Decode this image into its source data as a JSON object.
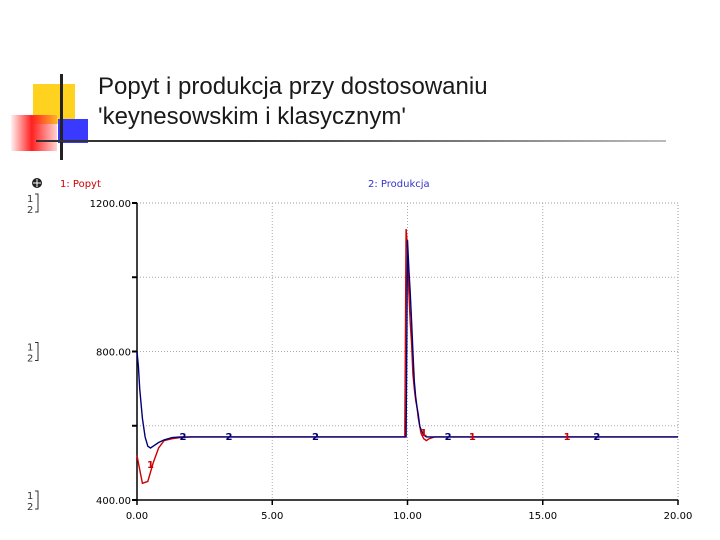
{
  "slide": {
    "title_line1": "Popyt i produkcja przy dostosowaniu",
    "title_line2": "'keynesowskim i klasycznym'"
  },
  "chart_data": {
    "type": "line",
    "title": "",
    "xlabel": "",
    "ylabel": "",
    "xlim": [
      0,
      20
    ],
    "ylim": [
      400,
      1200
    ],
    "x_ticks": [
      "0.00",
      "5.00",
      "10.00",
      "15.00",
      "20.00"
    ],
    "y_ticks": [
      "1200.00",
      "800.00",
      "400.00"
    ],
    "grid": true,
    "legend": "top",
    "series": [
      {
        "name": "1: Popyt",
        "color": "#cc0000",
        "marker_label": "1",
        "x": [
          0.0,
          0.05,
          0.2,
          0.4,
          0.6,
          0.8,
          1.0,
          1.3,
          1.6,
          2.0,
          3.0,
          5.0,
          9.9,
          9.95,
          10.0,
          10.05,
          10.1,
          10.15,
          10.2,
          10.25,
          10.3,
          10.35,
          10.4,
          10.45,
          10.5,
          10.6,
          10.7,
          10.8,
          11.0,
          12.0,
          15.0,
          20.0
        ],
        "y": [
          520,
          500,
          445,
          450,
          500,
          540,
          560,
          565,
          568,
          570,
          570,
          570,
          570,
          1130,
          1080,
          960,
          880,
          820,
          740,
          700,
          670,
          650,
          620,
          600,
          580,
          565,
          560,
          565,
          570,
          570,
          570,
          570
        ]
      },
      {
        "name": "2: Produkcja",
        "color": "#00007a",
        "marker_label": "2",
        "x": [
          0.0,
          0.05,
          0.1,
          0.2,
          0.3,
          0.4,
          0.5,
          0.6,
          0.8,
          1.0,
          1.3,
          1.6,
          2.0,
          3.0,
          5.0,
          9.9,
          9.95,
          10.0,
          10.05,
          10.1,
          10.15,
          10.2,
          10.25,
          10.3,
          10.35,
          10.4,
          10.45,
          10.5,
          10.6,
          10.7,
          11.0,
          12.0,
          15.0,
          20.0
        ],
        "y": [
          800,
          760,
          700,
          620,
          570,
          545,
          540,
          545,
          555,
          562,
          568,
          570,
          570,
          570,
          570,
          570,
          570,
          1100,
          1020,
          960,
          880,
          800,
          720,
          680,
          650,
          630,
          600,
          590,
          575,
          570,
          570,
          570,
          570,
          570
        ]
      }
    ]
  }
}
